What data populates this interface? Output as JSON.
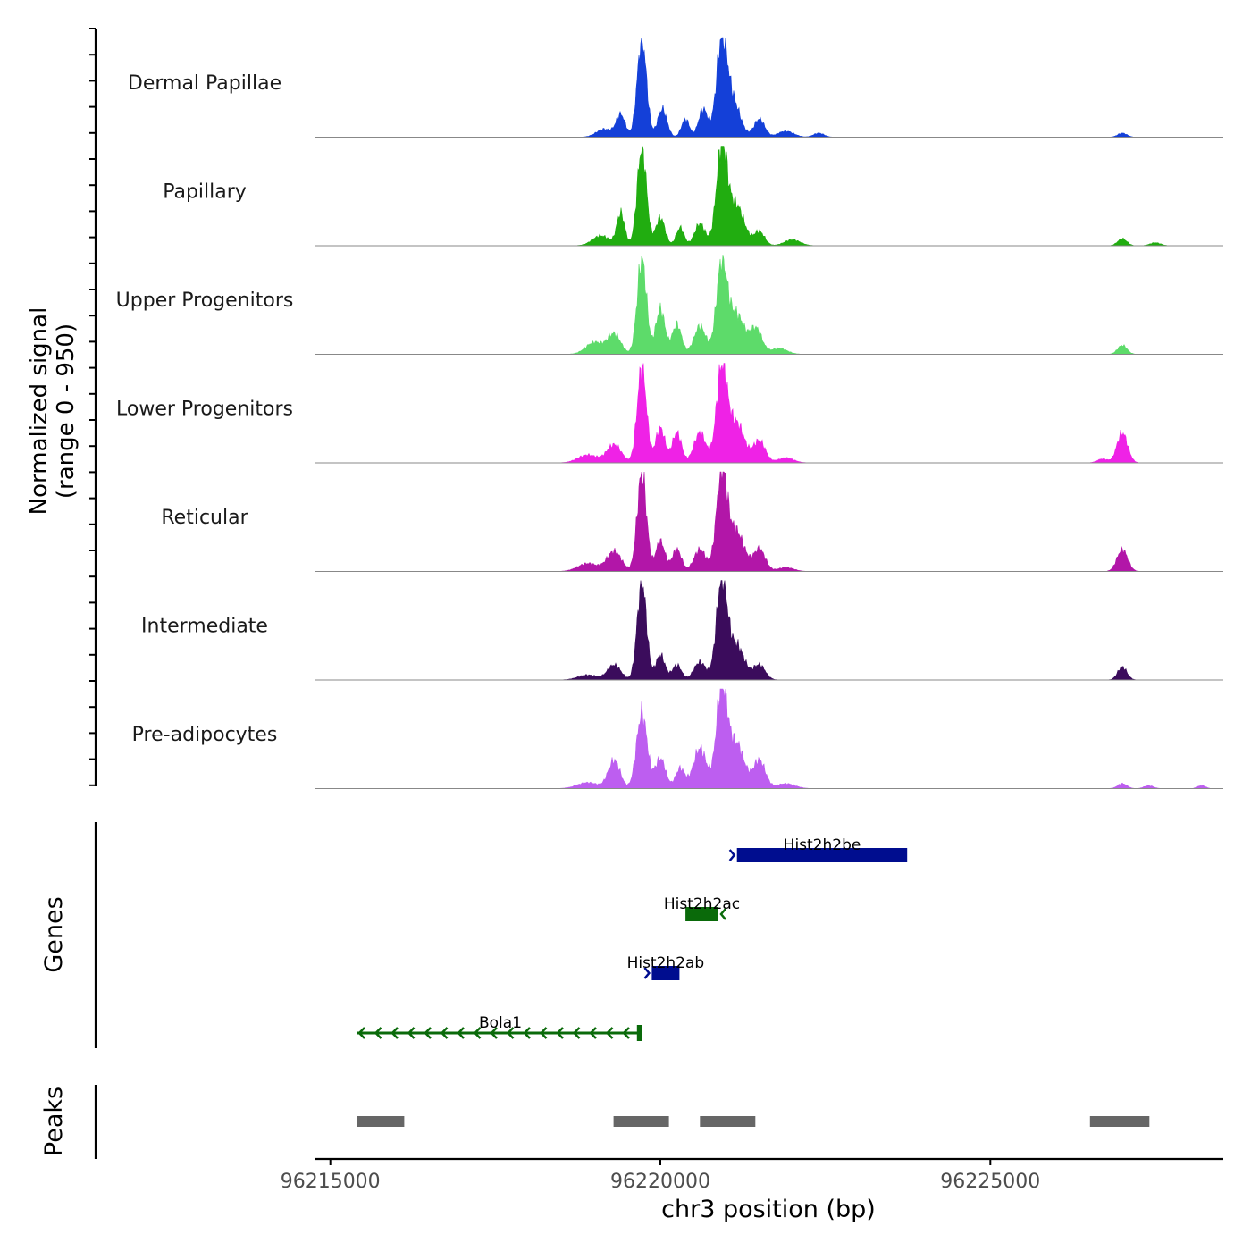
{
  "chart_data": {
    "type": "area",
    "title": "",
    "ylabel": "Normalized signal",
    "ylabel_range": "(range 0 - 950)",
    "y_range": [
      0,
      950
    ],
    "xlabel": "chr3 position (bp)",
    "x_range": [
      96214760,
      96228530
    ],
    "x_ticks": [
      96215000,
      96220000,
      96225000
    ],
    "x_tick_labels": [
      "96215000",
      "96220000",
      "96225000"
    ],
    "tracks": [
      {
        "name": "Dermal Papillae",
        "color": "#1440d8",
        "peaks": [
          {
            "center": 96219720,
            "height": 0.98,
            "width": 70
          },
          {
            "center": 96219400,
            "height": 0.22,
            "width": 70
          },
          {
            "center": 96219150,
            "height": 0.08,
            "width": 120
          },
          {
            "center": 96220030,
            "height": 0.28,
            "width": 70
          },
          {
            "center": 96220380,
            "height": 0.18,
            "width": 60
          },
          {
            "center": 96220650,
            "height": 0.28,
            "width": 70
          },
          {
            "center": 96220930,
            "height": 0.92,
            "width": 80
          },
          {
            "center": 96221100,
            "height": 0.35,
            "width": 110
          },
          {
            "center": 96221500,
            "height": 0.18,
            "width": 80
          },
          {
            "center": 96221900,
            "height": 0.06,
            "width": 120
          },
          {
            "center": 96222400,
            "height": 0.04,
            "width": 80
          },
          {
            "center": 96227000,
            "height": 0.04,
            "width": 70
          }
        ]
      },
      {
        "name": "Papillary",
        "color": "#21ad10",
        "peaks": [
          {
            "center": 96219720,
            "height": 0.98,
            "width": 70
          },
          {
            "center": 96219400,
            "height": 0.32,
            "width": 60
          },
          {
            "center": 96219100,
            "height": 0.1,
            "width": 130
          },
          {
            "center": 96220000,
            "height": 0.28,
            "width": 70
          },
          {
            "center": 96220300,
            "height": 0.18,
            "width": 60
          },
          {
            "center": 96220600,
            "height": 0.22,
            "width": 80
          },
          {
            "center": 96220930,
            "height": 0.98,
            "width": 80
          },
          {
            "center": 96221150,
            "height": 0.4,
            "width": 120
          },
          {
            "center": 96221500,
            "height": 0.14,
            "width": 80
          },
          {
            "center": 96222000,
            "height": 0.06,
            "width": 120
          },
          {
            "center": 96227000,
            "height": 0.07,
            "width": 70
          },
          {
            "center": 96227500,
            "height": 0.03,
            "width": 80
          }
        ]
      },
      {
        "name": "Upper Progenitors",
        "color": "#5ddb6a",
        "peaks": [
          {
            "center": 96219720,
            "height": 0.95,
            "width": 70
          },
          {
            "center": 96219300,
            "height": 0.2,
            "width": 100
          },
          {
            "center": 96219000,
            "height": 0.12,
            "width": 130
          },
          {
            "center": 96220000,
            "height": 0.45,
            "width": 70
          },
          {
            "center": 96220250,
            "height": 0.3,
            "width": 70
          },
          {
            "center": 96220600,
            "height": 0.28,
            "width": 90
          },
          {
            "center": 96220930,
            "height": 0.88,
            "width": 80
          },
          {
            "center": 96221150,
            "height": 0.4,
            "width": 120
          },
          {
            "center": 96221450,
            "height": 0.25,
            "width": 90
          },
          {
            "center": 96221800,
            "height": 0.06,
            "width": 120
          },
          {
            "center": 96227000,
            "height": 0.09,
            "width": 70
          }
        ]
      },
      {
        "name": "Lower Progenitors",
        "color": "#ef22e6",
        "peaks": [
          {
            "center": 96219720,
            "height": 0.95,
            "width": 70
          },
          {
            "center": 96219300,
            "height": 0.18,
            "width": 110
          },
          {
            "center": 96218900,
            "height": 0.08,
            "width": 150
          },
          {
            "center": 96220000,
            "height": 0.35,
            "width": 70
          },
          {
            "center": 96220250,
            "height": 0.3,
            "width": 70
          },
          {
            "center": 96220600,
            "height": 0.3,
            "width": 90
          },
          {
            "center": 96220930,
            "height": 0.92,
            "width": 80
          },
          {
            "center": 96221150,
            "height": 0.4,
            "width": 120
          },
          {
            "center": 96221500,
            "height": 0.22,
            "width": 90
          },
          {
            "center": 96221900,
            "height": 0.05,
            "width": 120
          },
          {
            "center": 96227000,
            "height": 0.3,
            "width": 80
          },
          {
            "center": 96226700,
            "height": 0.04,
            "width": 80
          }
        ]
      },
      {
        "name": "Reticular",
        "color": "#b216a8",
        "peaks": [
          {
            "center": 96219720,
            "height": 0.98,
            "width": 70
          },
          {
            "center": 96219300,
            "height": 0.2,
            "width": 110
          },
          {
            "center": 96218900,
            "height": 0.08,
            "width": 150
          },
          {
            "center": 96220000,
            "height": 0.3,
            "width": 70
          },
          {
            "center": 96220250,
            "height": 0.22,
            "width": 70
          },
          {
            "center": 96220600,
            "height": 0.22,
            "width": 90
          },
          {
            "center": 96220930,
            "height": 0.98,
            "width": 80
          },
          {
            "center": 96221150,
            "height": 0.4,
            "width": 120
          },
          {
            "center": 96221500,
            "height": 0.22,
            "width": 90
          },
          {
            "center": 96221900,
            "height": 0.04,
            "width": 120
          },
          {
            "center": 96227000,
            "height": 0.22,
            "width": 80
          }
        ]
      },
      {
        "name": "Intermediate",
        "color": "#3b0c5c",
        "peaks": [
          {
            "center": 96219720,
            "height": 0.98,
            "width": 70
          },
          {
            "center": 96219300,
            "height": 0.15,
            "width": 100
          },
          {
            "center": 96218900,
            "height": 0.05,
            "width": 150
          },
          {
            "center": 96220000,
            "height": 0.25,
            "width": 70
          },
          {
            "center": 96220250,
            "height": 0.15,
            "width": 70
          },
          {
            "center": 96220600,
            "height": 0.18,
            "width": 90
          },
          {
            "center": 96220930,
            "height": 0.98,
            "width": 80
          },
          {
            "center": 96221150,
            "height": 0.35,
            "width": 120
          },
          {
            "center": 96221500,
            "height": 0.15,
            "width": 90
          },
          {
            "center": 96227000,
            "height": 0.13,
            "width": 70
          }
        ]
      },
      {
        "name": "Pre-adipocytes",
        "color": "#bd5ef0",
        "peaks": [
          {
            "center": 96219720,
            "height": 0.75,
            "width": 80
          },
          {
            "center": 96219300,
            "height": 0.28,
            "width": 90
          },
          {
            "center": 96218900,
            "height": 0.06,
            "width": 160
          },
          {
            "center": 96220000,
            "height": 0.3,
            "width": 80
          },
          {
            "center": 96220300,
            "height": 0.2,
            "width": 70
          },
          {
            "center": 96220600,
            "height": 0.4,
            "width": 100
          },
          {
            "center": 96220930,
            "height": 1.0,
            "width": 80
          },
          {
            "center": 96221150,
            "height": 0.45,
            "width": 120
          },
          {
            "center": 96221500,
            "height": 0.28,
            "width": 90
          },
          {
            "center": 96221900,
            "height": 0.05,
            "width": 140
          },
          {
            "center": 96227000,
            "height": 0.05,
            "width": 70
          },
          {
            "center": 96227400,
            "height": 0.03,
            "width": 70
          },
          {
            "center": 96228200,
            "height": 0.03,
            "width": 60
          }
        ]
      }
    ],
    "genes_label": "Genes",
    "genes": [
      {
        "name": "Hist2h2be",
        "start": 96221160,
        "end": 96223740,
        "strand": "+",
        "color": "#000d8f",
        "style": "block"
      },
      {
        "name": "Hist2h2ac",
        "start": 96220380,
        "end": 96220880,
        "strand": "-",
        "color": "#0a6a0a",
        "style": "block"
      },
      {
        "name": "Hist2h2ab",
        "start": 96219870,
        "end": 96220290,
        "strand": "+",
        "color": "#000d8f",
        "style": "block"
      },
      {
        "name": "Bola1",
        "start": 96215410,
        "end": 96219700,
        "strand": "-",
        "color": "#0a6a0a",
        "style": "intron"
      }
    ],
    "peaks_label": "Peaks",
    "peak_regions": [
      {
        "start": 96215410,
        "end": 96216120
      },
      {
        "start": 96219290,
        "end": 96220130
      },
      {
        "start": 96220600,
        "end": 96221440
      },
      {
        "start": 96226510,
        "end": 96227410
      }
    ],
    "peak_color": "#666666"
  }
}
